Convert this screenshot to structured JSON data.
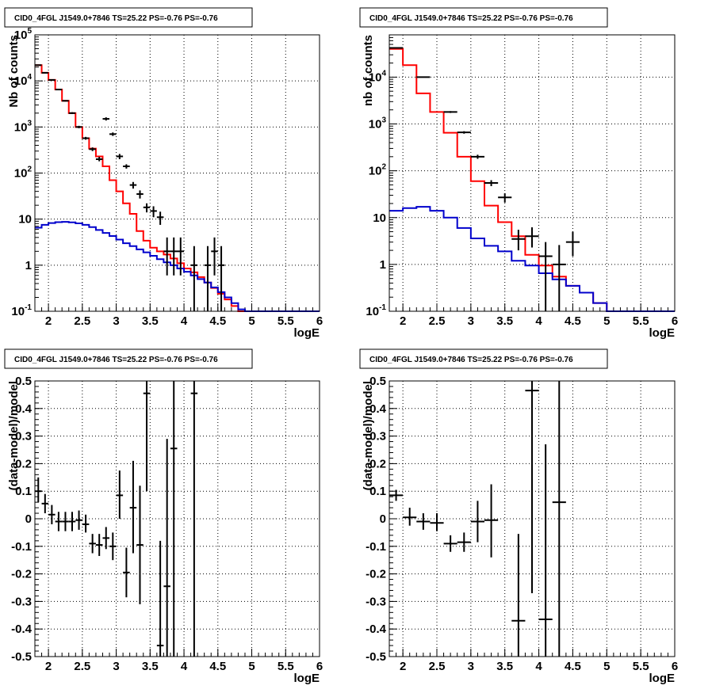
{
  "chart_data": [
    {
      "type": "step-histogram",
      "title": "CID0_4FGL J1549.0+7846 TS=25.22 PS=-0.76 PS=-0.76",
      "xlabel": "logE",
      "ylabel": "Nb of counts",
      "xlim": [
        1.8,
        6.0
      ],
      "ylim": [
        0.1,
        100000
      ],
      "yscale": "log",
      "grid": true,
      "xticks": [
        "2",
        "2.5",
        "3",
        "3.5",
        "4",
        "4.5",
        "5",
        "5.5",
        "6"
      ],
      "yticks": [
        {
          "base": "10",
          "exp": "-1"
        },
        {
          "base": "1",
          "exp": ""
        },
        {
          "base": "10",
          "exp": ""
        },
        {
          "base": "10",
          "exp": "2"
        },
        {
          "base": "10",
          "exp": "3"
        },
        {
          "base": "10",
          "exp": "4"
        },
        {
          "base": "10",
          "exp": "5"
        }
      ],
      "edges": [
        1.8,
        1.9,
        2.0,
        2.1,
        2.2,
        2.3,
        2.4,
        2.5,
        2.6,
        2.7,
        2.8,
        2.9,
        3.0,
        3.1,
        3.2,
        3.3,
        3.4,
        3.5,
        3.6,
        3.7,
        3.8,
        3.9,
        4.0,
        4.1,
        4.2,
        4.3,
        4.4,
        4.5,
        4.6,
        4.7,
        4.8,
        4.9,
        5.0,
        5.1,
        5.2,
        5.3,
        5.4,
        5.5,
        5.6,
        5.7,
        5.8,
        5.9,
        6.0
      ],
      "series": [
        {
          "color": "#ff0000",
          "values": [
            22000,
            15000,
            10500,
            6500,
            3700,
            2000,
            1000,
            570,
            340,
            230,
            140,
            70,
            40,
            22,
            13,
            5.5,
            3.4,
            2.4,
            2.0,
            1.7,
            1.4,
            1.1,
            0.85,
            0.7,
            0.55,
            0.42,
            0.32,
            0.24,
            0.18,
            0.13,
            0.1,
            0.1,
            0.1,
            0.1,
            0.1,
            0.1,
            0.1,
            0.1,
            0.1,
            0.1,
            0.1,
            0.1
          ]
        },
        {
          "color": "#0000cc",
          "values": [
            6.5,
            7.5,
            8.2,
            8.6,
            8.7,
            8.5,
            8.1,
            7.5,
            6.7,
            5.8,
            5.0,
            4.3,
            3.6,
            3.0,
            2.6,
            2.2,
            1.9,
            1.6,
            1.35,
            1.15,
            1.0,
            0.85,
            0.72,
            0.6,
            0.5,
            0.42,
            0.33,
            0.26,
            0.2,
            0.15,
            0.11,
            0.1,
            0.1,
            0.1,
            0.1,
            0.1,
            0.1,
            0.1,
            0.1,
            0.1,
            0.1,
            0.1
          ]
        }
      ],
      "points": [
        {
          "x": 1.85,
          "y": 22000,
          "xerr": 0.05,
          "ylo": 21500,
          "yhi": 22500
        },
        {
          "x": 1.95,
          "y": 15000,
          "xerr": 0.05,
          "ylo": 14600,
          "yhi": 15400
        },
        {
          "x": 2.05,
          "y": 10500,
          "xerr": 0.05,
          "ylo": 10200,
          "yhi": 10800
        },
        {
          "x": 2.15,
          "y": 6500,
          "xerr": 0.05,
          "ylo": 6300,
          "yhi": 6700
        },
        {
          "x": 2.25,
          "y": 3700,
          "xerr": 0.05,
          "ylo": 3580,
          "yhi": 3820
        },
        {
          "x": 2.35,
          "y": 2000,
          "xerr": 0.05,
          "ylo": 1910,
          "yhi": 2090
        },
        {
          "x": 2.45,
          "y": 1000,
          "xerr": 0.05,
          "ylo": 940,
          "yhi": 1060
        },
        {
          "x": 2.55,
          "y": 570,
          "xerr": 0.05,
          "ylo": 530,
          "yhi": 610
        },
        {
          "x": 2.65,
          "y": 330,
          "xerr": 0.05,
          "ylo": 300,
          "yhi": 360
        },
        {
          "x": 2.75,
          "y": 200,
          "xerr": 0.05,
          "ylo": 180,
          "yhi": 225
        },
        {
          "x": 2.85,
          "y": 1500,
          "xerr": 0.05,
          "ylo": 1380,
          "yhi": 1620
        },
        {
          "x": 2.95,
          "y": 700,
          "xerr": 0.05,
          "ylo": 640,
          "yhi": 760
        },
        {
          "x": 3.05,
          "y": 230,
          "xerr": 0.05,
          "ylo": 200,
          "yhi": 260
        },
        {
          "x": 3.15,
          "y": 140,
          "xerr": 0.05,
          "ylo": 125,
          "yhi": 155
        },
        {
          "x": 3.25,
          "y": 55,
          "xerr": 0.05,
          "ylo": 46,
          "yhi": 64
        },
        {
          "x": 3.35,
          "y": 35,
          "xerr": 0.05,
          "ylo": 28,
          "yhi": 42
        },
        {
          "x": 3.45,
          "y": 18,
          "xerr": 0.05,
          "ylo": 14,
          "yhi": 22
        },
        {
          "x": 3.55,
          "y": 15,
          "xerr": 0.05,
          "ylo": 11,
          "yhi": 19
        },
        {
          "x": 3.65,
          "y": 11,
          "xerr": 0.05,
          "ylo": 7.5,
          "yhi": 14.5
        },
        {
          "x": 3.75,
          "y": 2.0,
          "xerr": 0.05,
          "ylo": 0.6,
          "yhi": 4.0
        },
        {
          "x": 3.85,
          "y": 2.0,
          "xerr": 0.05,
          "ylo": 0.6,
          "yhi": 4.0
        },
        {
          "x": 3.95,
          "y": 2.0,
          "xerr": 0.05,
          "ylo": 0.6,
          "yhi": 4.0
        },
        {
          "x": 4.15,
          "y": 1.0,
          "xerr": 0.05,
          "ylo": 0.1,
          "yhi": 2.6
        },
        {
          "x": 4.35,
          "y": 1.0,
          "xerr": 0.05,
          "ylo": 0.1,
          "yhi": 2.6
        },
        {
          "x": 4.45,
          "y": 2.0,
          "xerr": 0.05,
          "ylo": 0.6,
          "yhi": 4.0
        },
        {
          "x": 4.55,
          "y": 1.0,
          "xerr": 0.05,
          "ylo": 0.1,
          "yhi": 2.6
        }
      ]
    },
    {
      "type": "step-histogram",
      "title": "CID0_4FGL J1549.0+7846 TS=25.22 PS=-0.76 PS=-0.76",
      "xlabel": "logE",
      "ylabel": "nb of counts",
      "xlim": [
        1.8,
        6.0
      ],
      "ylim": [
        0.1,
        80000
      ],
      "yscale": "log",
      "grid": true,
      "xticks": [
        "2",
        "2.5",
        "3",
        "3.5",
        "4",
        "4.5",
        "5",
        "5.5",
        "6"
      ],
      "yticks": [
        {
          "base": "10",
          "exp": "-1"
        },
        {
          "base": "1",
          "exp": ""
        },
        {
          "base": "10",
          "exp": ""
        },
        {
          "base": "10",
          "exp": "2"
        },
        {
          "base": "10",
          "exp": "3"
        },
        {
          "base": "10",
          "exp": "4"
        }
      ],
      "edges": [
        1.8,
        2.0,
        2.2,
        2.4,
        2.6,
        2.8,
        3.0,
        3.2,
        3.4,
        3.6,
        3.8,
        4.0,
        4.2,
        4.4,
        4.6,
        4.8,
        5.0,
        5.2,
        5.4,
        5.6,
        5.8,
        6.0
      ],
      "series": [
        {
          "color": "#ff0000",
          "values": [
            40000,
            18000,
            4500,
            1800,
            650,
            200,
            60,
            18,
            8,
            4,
            1.6,
            0.95,
            0.55,
            0.35,
            0.25,
            0.15,
            0.1,
            0.1,
            0.1,
            0.1,
            0.1
          ]
        },
        {
          "color": "#0000cc",
          "values": [
            14,
            16,
            17,
            14,
            10,
            6,
            3.6,
            2.5,
            1.9,
            1.2,
            0.95,
            0.65,
            0.48,
            0.35,
            0.25,
            0.15,
            0.1,
            0.1,
            0.1,
            0.1,
            0.1
          ]
        }
      ],
      "points": [
        {
          "x": 1.9,
          "y": 42000,
          "xerr": 0.1,
          "ylo": 41500,
          "yhi": 42500
        },
        {
          "x": 2.3,
          "y": 10000,
          "xerr": 0.1,
          "ylo": 9800,
          "yhi": 10200
        },
        {
          "x": 2.7,
          "y": 1800,
          "xerr": 0.1,
          "ylo": 1720,
          "yhi": 1880
        },
        {
          "x": 2.9,
          "y": 660,
          "xerr": 0.1,
          "ylo": 620,
          "yhi": 700
        },
        {
          "x": 3.1,
          "y": 200,
          "xerr": 0.1,
          "ylo": 180,
          "yhi": 220
        },
        {
          "x": 3.3,
          "y": 55,
          "xerr": 0.1,
          "ylo": 47,
          "yhi": 63
        },
        {
          "x": 3.5,
          "y": 27,
          "xerr": 0.1,
          "ylo": 21,
          "yhi": 33
        },
        {
          "x": 3.7,
          "y": 3.5,
          "xerr": 0.1,
          "ylo": 2.0,
          "yhi": 5.5
        },
        {
          "x": 3.9,
          "y": 4.0,
          "xerr": 0.1,
          "ylo": 2.3,
          "yhi": 6.2
        },
        {
          "x": 4.1,
          "y": 1.5,
          "xerr": 0.1,
          "ylo": 0.1,
          "yhi": 3.0
        },
        {
          "x": 4.3,
          "y": 1.0,
          "xerr": 0.1,
          "ylo": 0.1,
          "yhi": 2.6
        },
        {
          "x": 4.5,
          "y": 3.0,
          "xerr": 0.1,
          "ylo": 1.5,
          "yhi": 5.0
        }
      ]
    },
    {
      "type": "scatter",
      "title": "CID0_4FGL J1549.0+7846 TS=25.22 PS=-0.76 PS=-0.76",
      "xlabel": "logE",
      "ylabel": "(data-model)/model",
      "xlim": [
        1.8,
        6.0
      ],
      "ylim": [
        -0.5,
        0.5
      ],
      "yscale": "linear",
      "grid": true,
      "xticks": [
        "2",
        "2.5",
        "3",
        "3.5",
        "4",
        "4.5",
        "5",
        "5.5",
        "6"
      ],
      "yticks": [
        "-0.5",
        "-0.4",
        "-0.3",
        "-0.2",
        "-0.1",
        "0",
        "0.1",
        "0.2",
        "0.3",
        "0.4",
        "0.5"
      ],
      "points": [
        {
          "x": 1.85,
          "y": 0.1,
          "xerr": 0.05,
          "ylo": 0.06,
          "yhi": 0.15
        },
        {
          "x": 1.95,
          "y": 0.055,
          "xerr": 0.05,
          "ylo": 0.02,
          "yhi": 0.09
        },
        {
          "x": 2.05,
          "y": 0.015,
          "xerr": 0.05,
          "ylo": -0.02,
          "yhi": 0.05
        },
        {
          "x": 2.15,
          "y": -0.01,
          "xerr": 0.05,
          "ylo": -0.045,
          "yhi": 0.025
        },
        {
          "x": 2.25,
          "y": -0.01,
          "xerr": 0.05,
          "ylo": -0.045,
          "yhi": 0.025
        },
        {
          "x": 2.35,
          "y": -0.01,
          "xerr": 0.05,
          "ylo": -0.045,
          "yhi": 0.025
        },
        {
          "x": 2.45,
          "y": -0.005,
          "xerr": 0.05,
          "ylo": -0.04,
          "yhi": 0.03
        },
        {
          "x": 2.55,
          "y": -0.02,
          "xerr": 0.05,
          "ylo": -0.05,
          "yhi": 0.015
        },
        {
          "x": 2.65,
          "y": -0.09,
          "xerr": 0.05,
          "ylo": -0.125,
          "yhi": -0.055
        },
        {
          "x": 2.75,
          "y": -0.095,
          "xerr": 0.05,
          "ylo": -0.135,
          "yhi": -0.055
        },
        {
          "x": 2.85,
          "y": -0.07,
          "xerr": 0.05,
          "ylo": -0.11,
          "yhi": -0.03
        },
        {
          "x": 2.95,
          "y": -0.1,
          "xerr": 0.05,
          "ylo": -0.15,
          "yhi": -0.05
        },
        {
          "x": 3.05,
          "y": 0.085,
          "xerr": 0.05,
          "ylo": 0.0,
          "yhi": 0.175
        },
        {
          "x": 3.15,
          "y": -0.195,
          "xerr": 0.05,
          "ylo": -0.285,
          "yhi": -0.105
        },
        {
          "x": 3.25,
          "y": 0.04,
          "xerr": 0.05,
          "ylo": -0.125,
          "yhi": 0.21
        },
        {
          "x": 3.35,
          "y": -0.095,
          "xerr": 0.05,
          "ylo": -0.31,
          "yhi": 0.12
        },
        {
          "x": 3.45,
          "y": 0.455,
          "xerr": 0.05,
          "ylo": 0.1,
          "yhi": 0.5
        },
        {
          "x": 3.65,
          "y": -0.46,
          "xerr": 0.05,
          "ylo": -0.5,
          "yhi": -0.08
        },
        {
          "x": 3.75,
          "y": -0.245,
          "xerr": 0.05,
          "ylo": -0.5,
          "yhi": 0.29
        },
        {
          "x": 3.85,
          "y": 0.255,
          "xerr": 0.05,
          "ylo": -0.5,
          "yhi": 0.5
        },
        {
          "x": 4.15,
          "y": 0.455,
          "xerr": 0.05,
          "ylo": -0.5,
          "yhi": 0.5
        }
      ]
    },
    {
      "type": "scatter",
      "title": "CID0_4FGL J1549.0+7846 TS=25.22 PS=-0.76 PS=-0.76",
      "xlabel": "logE",
      "ylabel": "(data-model)/model",
      "xlim": [
        1.8,
        6.0
      ],
      "ylim": [
        -0.5,
        0.5
      ],
      "yscale": "linear",
      "grid": true,
      "xticks": [
        "2",
        "2.5",
        "3",
        "3.5",
        "4",
        "4.5",
        "5",
        "5.5",
        "6"
      ],
      "yticks": [
        "-0.5",
        "-0.4",
        "-0.3",
        "-0.2",
        "-0.1",
        "0",
        "0.1",
        "0.2",
        "0.3",
        "0.4",
        "0.5"
      ],
      "points": [
        {
          "x": 1.9,
          "y": 0.085,
          "xerr": 0.1,
          "ylo": 0.065,
          "yhi": 0.105
        },
        {
          "x": 2.1,
          "y": 0.005,
          "xerr": 0.1,
          "ylo": -0.025,
          "yhi": 0.04
        },
        {
          "x": 2.3,
          "y": -0.01,
          "xerr": 0.1,
          "ylo": -0.04,
          "yhi": 0.02
        },
        {
          "x": 2.5,
          "y": -0.015,
          "xerr": 0.1,
          "ylo": -0.045,
          "yhi": 0.02
        },
        {
          "x": 2.7,
          "y": -0.09,
          "xerr": 0.1,
          "ylo": -0.12,
          "yhi": -0.06
        },
        {
          "x": 2.9,
          "y": -0.085,
          "xerr": 0.1,
          "ylo": -0.12,
          "yhi": -0.05
        },
        {
          "x": 3.1,
          "y": -0.01,
          "xerr": 0.1,
          "ylo": -0.085,
          "yhi": 0.065
        },
        {
          "x": 3.3,
          "y": -0.005,
          "xerr": 0.1,
          "ylo": -0.14,
          "yhi": 0.125
        },
        {
          "x": 3.7,
          "y": -0.37,
          "xerr": 0.1,
          "ylo": -0.5,
          "yhi": -0.055
        },
        {
          "x": 3.9,
          "y": 0.465,
          "xerr": 0.1,
          "ylo": -0.27,
          "yhi": 0.5
        },
        {
          "x": 4.1,
          "y": -0.365,
          "xerr": 0.1,
          "ylo": -0.5,
          "yhi": 0.27
        },
        {
          "x": 4.3,
          "y": 0.06,
          "xerr": 0.1,
          "ylo": -0.5,
          "yhi": 0.5
        }
      ]
    }
  ]
}
